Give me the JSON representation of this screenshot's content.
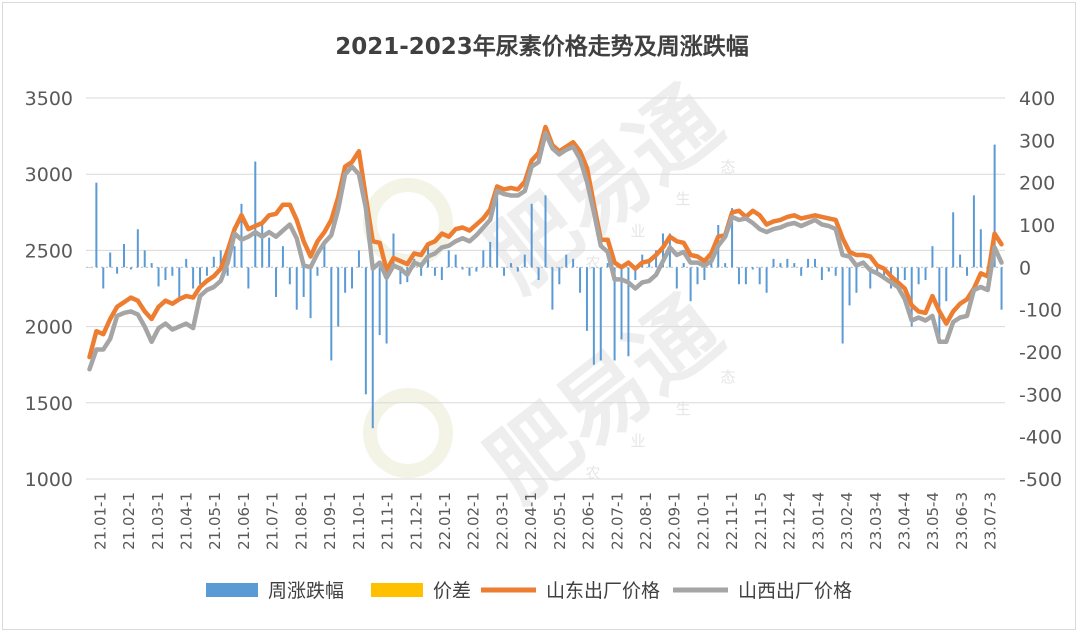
{
  "chart_data": {
    "type": "bar+line",
    "title": "2021-2023年尿素价格走势及周涨跌幅",
    "watermark_text": "肥易通",
    "watermark_sub": [
      "农",
      "业",
      "生",
      "态"
    ],
    "y_left": {
      "min": 1000,
      "max": 3500,
      "ticks": [
        1000,
        1500,
        2000,
        2500,
        3000,
        3500
      ]
    },
    "y_right": {
      "min": -500,
      "max": 400,
      "ticks": [
        -500,
        -400,
        -300,
        -200,
        -100,
        0,
        100,
        200,
        300,
        400
      ]
    },
    "x_tick_labels": [
      "21.01-1",
      "21.02-1",
      "21.03-1",
      "21.04-1",
      "21.05-1",
      "21.06-1",
      "21.07-1",
      "21.08-1",
      "21.09-1",
      "21.10-1",
      "21.11-1",
      "21.12-1",
      "22.01-1",
      "22.02-1",
      "22.03-1",
      "22.04-1",
      "22.05-1",
      "22.06-1",
      "22.07-1",
      "22.08-1",
      "22.09-1",
      "22.10-1",
      "22.11-1",
      "22.11-5",
      "22.12-4",
      "23.01-4",
      "23.02-4",
      "23.03-4",
      "23.04-4",
      "23.05-4",
      "23.06-3",
      "23.07-3"
    ],
    "legend": [
      {
        "label": "周涨跌幅",
        "color": "#5b9bd5",
        "kind": "bar"
      },
      {
        "label": "价差",
        "color": "#ffc000",
        "kind": "bar"
      },
      {
        "label": "山东出厂价格",
        "color": "#ed7d31",
        "kind": "line"
      },
      {
        "label": "山西出厂价格",
        "color": "#a5a5a5",
        "kind": "line"
      }
    ],
    "series": [
      {
        "name": "山东出厂价格",
        "values": [
          1800,
          1970,
          1950,
          2050,
          2130,
          2160,
          2190,
          2170,
          2100,
          2050,
          2130,
          2170,
          2150,
          2180,
          2200,
          2190,
          2260,
          2300,
          2330,
          2380,
          2500,
          2640,
          2730,
          2640,
          2660,
          2680,
          2730,
          2740,
          2800,
          2800,
          2700,
          2560,
          2460,
          2560,
          2620,
          2700,
          2850,
          3050,
          3080,
          3150,
          2850,
          2560,
          2550,
          2370,
          2450,
          2430,
          2410,
          2480,
          2470,
          2540,
          2560,
          2610,
          2590,
          2640,
          2650,
          2630,
          2670,
          2710,
          2770,
          2920,
          2900,
          2910,
          2900,
          2950,
          3090,
          3140,
          3310,
          3190,
          3150,
          3180,
          3210,
          3150,
          3040,
          2800,
          2570,
          2570,
          2420,
          2390,
          2420,
          2380,
          2420,
          2430,
          2470,
          2520,
          2590,
          2560,
          2550,
          2470,
          2460,
          2430,
          2480,
          2590,
          2600,
          2750,
          2760,
          2720,
          2760,
          2730,
          2670,
          2690,
          2700,
          2720,
          2730,
          2710,
          2720,
          2730,
          2720,
          2710,
          2700,
          2580,
          2490,
          2470,
          2470,
          2460,
          2400,
          2380,
          2330,
          2290,
          2250,
          2140,
          2100,
          2090,
          2200,
          2100,
          2020,
          2100,
          2150,
          2180,
          2250,
          2350,
          2330,
          2610,
          2540
        ]
      },
      {
        "name": "山西出厂价格",
        "values": [
          1720,
          1850,
          1850,
          1920,
          2070,
          2090,
          2100,
          2080,
          2000,
          1900,
          1990,
          2020,
          1980,
          2000,
          2020,
          1990,
          2200,
          2240,
          2260,
          2300,
          2420,
          2610,
          2570,
          2590,
          2620,
          2590,
          2620,
          2590,
          2630,
          2670,
          2580,
          2400,
          2390,
          2480,
          2550,
          2600,
          2770,
          3000,
          3050,
          3000,
          2780,
          2380,
          2420,
          2320,
          2400,
          2380,
          2340,
          2420,
          2400,
          2460,
          2480,
          2520,
          2530,
          2560,
          2580,
          2560,
          2600,
          2650,
          2700,
          2890,
          2870,
          2860,
          2860,
          2890,
          3050,
          3080,
          3270,
          3170,
          3130,
          3160,
          3180,
          3100,
          2950,
          2750,
          2530,
          2490,
          2310,
          2310,
          2290,
          2250,
          2290,
          2300,
          2340,
          2430,
          2520,
          2470,
          2490,
          2420,
          2420,
          2400,
          2430,
          2530,
          2590,
          2720,
          2700,
          2710,
          2680,
          2640,
          2620,
          2640,
          2650,
          2670,
          2680,
          2660,
          2680,
          2700,
          2670,
          2660,
          2640,
          2470,
          2460,
          2400,
          2420,
          2370,
          2350,
          2320,
          2290,
          2260,
          2180,
          2040,
          2060,
          2040,
          2070,
          1900,
          1900,
          2030,
          2060,
          2070,
          2240,
          2260,
          2240,
          2520,
          2420
        ]
      }
    ],
    "bar_series": {
      "name": "周涨跌幅",
      "values": [
        0,
        200,
        -50,
        35,
        -15,
        55,
        -5,
        90,
        40,
        10,
        -45,
        -30,
        -20,
        -80,
        20,
        -50,
        -40,
        -20,
        25,
        40,
        -20,
        50,
        150,
        -50,
        250,
        110,
        70,
        -70,
        50,
        -40,
        -100,
        -70,
        -120,
        -20,
        60,
        -220,
        -140,
        -60,
        -50,
        40,
        -300,
        -380,
        -160,
        -180,
        80,
        -40,
        -35,
        20,
        -20,
        50,
        -20,
        -30,
        40,
        30,
        -5,
        -20,
        -10,
        40,
        60,
        180,
        -20,
        10,
        -10,
        30,
        150,
        -30,
        170,
        -100,
        -40,
        30,
        20,
        -60,
        -150,
        -230,
        -220,
        10,
        -220,
        -170,
        -210,
        -30,
        30,
        10,
        40,
        80,
        80,
        -50,
        10,
        -80,
        -40,
        -30,
        30,
        100,
        10,
        140,
        -40,
        -40,
        -5,
        -40,
        -60,
        20,
        10,
        20,
        10,
        -20,
        20,
        20,
        -30,
        -10,
        -20,
        -180,
        -90,
        -60,
        0,
        -50,
        -10,
        -30,
        -50,
        -40,
        -30,
        -140,
        -40,
        -30,
        50,
        -170,
        -80,
        130,
        30,
        -20,
        170,
        90,
        -20,
        290,
        -100
      ]
    }
  }
}
